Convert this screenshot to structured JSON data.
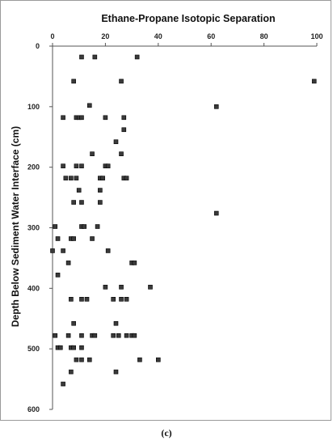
{
  "chart_data": {
    "type": "scatter",
    "title": "Ethane-Propane  Isotopic  Separation",
    "ylabel": "Depth Below Sediment Water Interface (cm)",
    "xlabel": "",
    "x_axis_position": "top",
    "y_inverted": true,
    "xlim": [
      0,
      100
    ],
    "ylim": [
      0,
      600
    ],
    "x_ticks": [
      "0",
      "20",
      "40",
      "60",
      "80",
      "100"
    ],
    "y_ticks": [
      "0",
      "100",
      "200",
      "300",
      "400",
      "500",
      "600"
    ],
    "grid": false,
    "legend": "none",
    "marker_color": "#3a3a3a",
    "points": [
      {
        "x": 11,
        "y": 18
      },
      {
        "x": 16,
        "y": 18
      },
      {
        "x": 32,
        "y": 18
      },
      {
        "x": 8,
        "y": 58
      },
      {
        "x": 26,
        "y": 58
      },
      {
        "x": 99,
        "y": 58
      },
      {
        "x": 14,
        "y": 98
      },
      {
        "x": 62,
        "y": 100
      },
      {
        "x": 4,
        "y": 118
      },
      {
        "x": 9,
        "y": 118
      },
      {
        "x": 10,
        "y": 118
      },
      {
        "x": 11,
        "y": 118
      },
      {
        "x": 20,
        "y": 118
      },
      {
        "x": 27,
        "y": 118
      },
      {
        "x": 27,
        "y": 138
      },
      {
        "x": 24,
        "y": 158
      },
      {
        "x": 15,
        "y": 178
      },
      {
        "x": 26,
        "y": 178
      },
      {
        "x": 4,
        "y": 198
      },
      {
        "x": 9,
        "y": 198
      },
      {
        "x": 11,
        "y": 198
      },
      {
        "x": 20,
        "y": 198
      },
      {
        "x": 21,
        "y": 198
      },
      {
        "x": 5,
        "y": 218
      },
      {
        "x": 7,
        "y": 218
      },
      {
        "x": 9,
        "y": 218
      },
      {
        "x": 18,
        "y": 218
      },
      {
        "x": 19,
        "y": 218
      },
      {
        "x": 27,
        "y": 218
      },
      {
        "x": 28,
        "y": 218
      },
      {
        "x": 10,
        "y": 238
      },
      {
        "x": 18,
        "y": 238
      },
      {
        "x": 8,
        "y": 258
      },
      {
        "x": 11,
        "y": 258
      },
      {
        "x": 18,
        "y": 258
      },
      {
        "x": 62,
        "y": 276
      },
      {
        "x": 1,
        "y": 298
      },
      {
        "x": 11,
        "y": 298
      },
      {
        "x": 12,
        "y": 298
      },
      {
        "x": 17,
        "y": 298
      },
      {
        "x": 2,
        "y": 318
      },
      {
        "x": 7,
        "y": 318
      },
      {
        "x": 8,
        "y": 318
      },
      {
        "x": 15,
        "y": 318
      },
      {
        "x": 0,
        "y": 338
      },
      {
        "x": 4,
        "y": 338
      },
      {
        "x": 21,
        "y": 338
      },
      {
        "x": 6,
        "y": 358
      },
      {
        "x": 30,
        "y": 358
      },
      {
        "x": 31,
        "y": 358
      },
      {
        "x": 2,
        "y": 378
      },
      {
        "x": 20,
        "y": 398
      },
      {
        "x": 26,
        "y": 398
      },
      {
        "x": 37,
        "y": 398
      },
      {
        "x": 7,
        "y": 418
      },
      {
        "x": 11,
        "y": 418
      },
      {
        "x": 13,
        "y": 418
      },
      {
        "x": 23,
        "y": 418
      },
      {
        "x": 26,
        "y": 418
      },
      {
        "x": 28,
        "y": 418
      },
      {
        "x": 8,
        "y": 458
      },
      {
        "x": 24,
        "y": 458
      },
      {
        "x": 1,
        "y": 478
      },
      {
        "x": 6,
        "y": 478
      },
      {
        "x": 11,
        "y": 478
      },
      {
        "x": 15,
        "y": 478
      },
      {
        "x": 16,
        "y": 478
      },
      {
        "x": 23,
        "y": 478
      },
      {
        "x": 25,
        "y": 478
      },
      {
        "x": 28,
        "y": 478
      },
      {
        "x": 30,
        "y": 478
      },
      {
        "x": 31,
        "y": 478
      },
      {
        "x": 2,
        "y": 498
      },
      {
        "x": 3,
        "y": 498
      },
      {
        "x": 7,
        "y": 498
      },
      {
        "x": 8,
        "y": 498
      },
      {
        "x": 11,
        "y": 498
      },
      {
        "x": 9,
        "y": 518
      },
      {
        "x": 11,
        "y": 518
      },
      {
        "x": 14,
        "y": 518
      },
      {
        "x": 33,
        "y": 518
      },
      {
        "x": 40,
        "y": 518
      },
      {
        "x": 7,
        "y": 538
      },
      {
        "x": 24,
        "y": 538
      },
      {
        "x": 4,
        "y": 558
      }
    ]
  },
  "caption": "(c)"
}
